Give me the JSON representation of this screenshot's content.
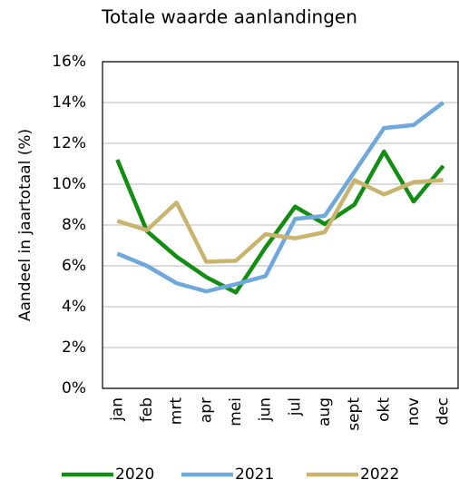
{
  "chart_data": {
    "type": "line",
    "title": "Totale waarde aanlandingen",
    "y_label": "Aandeel in jaartotaal (%)",
    "categories": [
      "jan",
      "feb",
      "mrt",
      "apr",
      "mei",
      "jun",
      "jul",
      "aug",
      "sept",
      "okt",
      "nov",
      "dec"
    ],
    "series": [
      {
        "name": "2020",
        "color": "#138d13",
        "values": [
          11.2,
          7.7,
          6.45,
          5.45,
          4.7,
          6.9,
          8.9,
          8.05,
          9.0,
          11.6,
          9.15,
          10.9
        ]
      },
      {
        "name": "2021",
        "color": "#6fa8dc",
        "values": [
          6.6,
          6.0,
          5.15,
          4.75,
          5.1,
          5.5,
          8.3,
          8.45,
          10.6,
          12.75,
          12.9,
          14.0
        ]
      },
      {
        "name": "2022",
        "color": "#c8b46e",
        "values": [
          8.2,
          7.75,
          9.1,
          6.2,
          6.25,
          7.55,
          7.35,
          7.65,
          10.2,
          9.5,
          10.1,
          10.2
        ]
      }
    ],
    "ylim": [
      0,
      16
    ],
    "yticks": [
      {
        "value": 0,
        "label": "0%"
      },
      {
        "value": 2,
        "label": "2%"
      },
      {
        "value": 4,
        "label": "4%"
      },
      {
        "value": 6,
        "label": "6%"
      },
      {
        "value": 8,
        "label": "8%"
      },
      {
        "value": 10,
        "label": "10%"
      },
      {
        "value": 12,
        "label": "12%"
      },
      {
        "value": 14,
        "label": "14%"
      },
      {
        "value": 16,
        "label": "16%"
      }
    ],
    "grid": true,
    "legend": "bottom"
  }
}
